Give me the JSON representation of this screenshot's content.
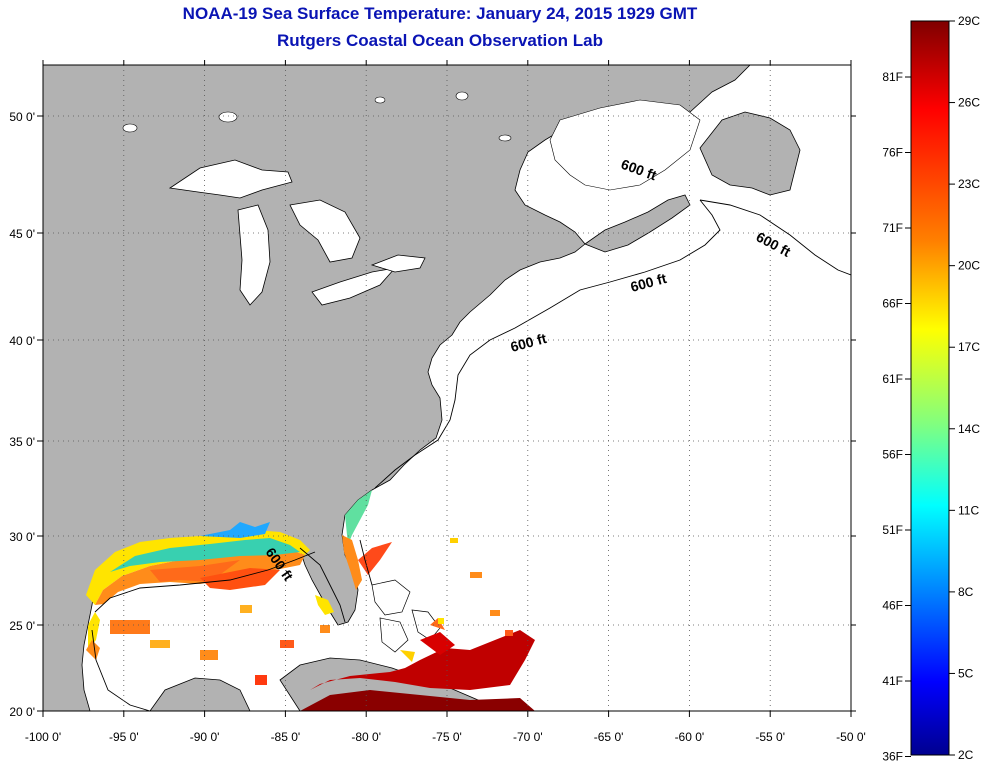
{
  "title_line1": "NOAA-19 Sea Surface Temperature:  January 24, 2015 1929 GMT",
  "title_line2": "Rutgers Coastal Ocean Observation Lab",
  "x_ticks": [
    "-100 0'",
    "-95 0'",
    "-90 0'",
    "-85 0'",
    "-80 0'",
    "-75 0'",
    "-70 0'",
    "-65 0'",
    "-60 0'",
    "-55 0'",
    "-50 0'"
  ],
  "y_ticks": [
    "50 0'",
    "45 0'",
    "40 0'",
    "35 0'",
    "30 0'",
    "25 0'",
    "20 0'"
  ],
  "contour_label": "600 ft",
  "colorbar": {
    "celsius_labels": [
      "29C",
      "26C",
      "23C",
      "20C",
      "17C",
      "14C",
      "11C",
      "8C",
      "5C",
      "2C"
    ],
    "fahrenheit_labels": [
      "81F",
      "76F",
      "71F",
      "66F",
      "61F",
      "56F",
      "51F",
      "46F",
      "41F",
      "36F"
    ],
    "colors_top_to_bottom": [
      "#7f0000",
      "#ff0000",
      "#ff8000",
      "#ffff00",
      "#80ff80",
      "#00ffff",
      "#0080ff",
      "#0000ff",
      "#00008f"
    ]
  },
  "colors": {
    "land": "#b2b2b2",
    "ocean": "#ffffff",
    "title": "#0a14b4"
  }
}
